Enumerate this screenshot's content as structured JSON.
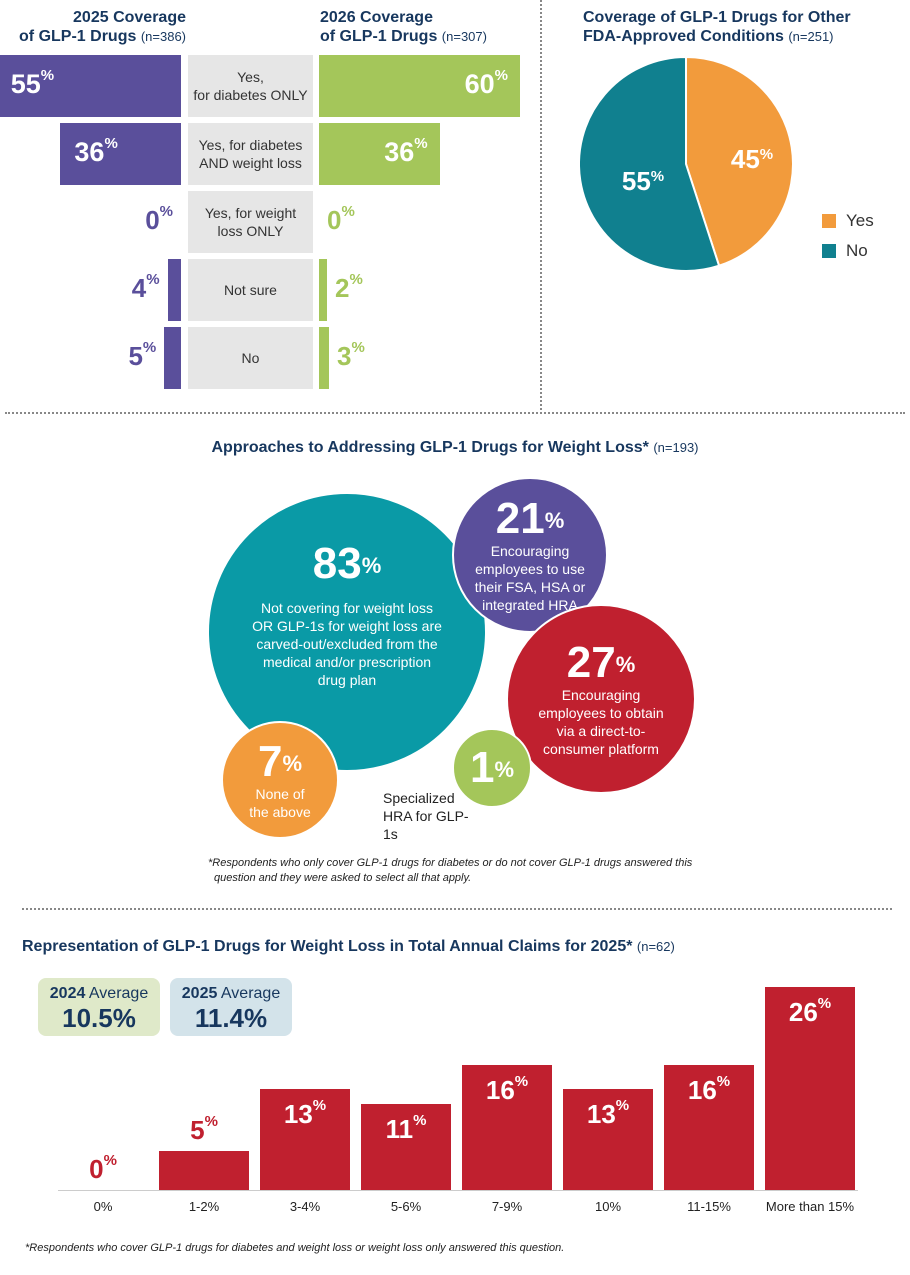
{
  "coverage": {
    "left_title": "2025 Coverage",
    "left_title2": "of GLP-1 Drugs",
    "left_n": "(n=386)",
    "right_title": "2026 Coverage",
    "right_title2": "of GLP-1 Drugs",
    "right_n": "(n=307)",
    "rows": [
      {
        "label": "Yes,\nfor diabetes ONLY",
        "v2025": 55,
        "v2026": 60,
        "t2025": "55",
        "t2026": "60"
      },
      {
        "label": "Yes, for diabetes\nAND weight loss",
        "v2025": 36,
        "v2026": 36,
        "t2025": "36",
        "t2026": "36"
      },
      {
        "label": "Yes, for weight\nloss ONLY",
        "v2025": 0,
        "v2026": 0,
        "t2025": "0",
        "t2026": "0"
      },
      {
        "label": "Not sure",
        "v2025": 4,
        "v2026": 2,
        "t2025": "4",
        "t2026": "2"
      },
      {
        "label": "No",
        "v2025": 5,
        "v2026": 3,
        "t2025": "5",
        "t2026": "3"
      }
    ],
    "pct_sign": "%",
    "color_2025": "#5a4f9b",
    "color_2026": "#a4c65a"
  },
  "pie": {
    "title1": "Coverage of GLP-1 Drugs for Other",
    "title2": "FDA-Approved Conditions",
    "n": "(n=251)",
    "chart_data": {
      "type": "pie",
      "slices": [
        {
          "name": "Yes",
          "value": 45,
          "color": "#f29b3c"
        },
        {
          "name": "No",
          "value": 55,
          "color": "#10808f"
        }
      ]
    },
    "yes_label": "45",
    "no_label": "55",
    "legend_yes": "Yes",
    "legend_no": "No"
  },
  "approaches": {
    "title": "Approaches to Addressing GLP-1 Drugs for Weight Loss*",
    "n": "(n=193)",
    "b83_value": "83",
    "b83_text": "Not covering for weight loss OR GLP-1s for weight loss are carved-out/excluded from the medical and/or prescription drug plan",
    "b21_value": "21",
    "b21_text": "Encouraging employees to use their FSA, HSA or integrated HRA",
    "b27_value": "27",
    "b27_text": "Encouraging employees to obtain via a direct-to-consumer platform",
    "b7_value": "7",
    "b7_text": "None of the above",
    "b1_value": "1",
    "b1_text": "Specialized HRA for GLP-1s",
    "footnote1": "*Respondents who only cover GLP-1 drugs for diabetes or do not cover GLP-1 drugs answered this",
    "footnote2": "question and they were asked to select all that apply."
  },
  "claims": {
    "title": "Representation of GLP-1 Drugs for Weight Loss in Total Annual Claims for 2025*",
    "n": "(n=62)",
    "avg2024_year": "2024",
    "avg2024_word": "Average",
    "avg2024_value": "10.5%",
    "avg2025_year": "2025",
    "avg2025_word": "Average",
    "avg2025_value": "11.4%",
    "chart_data": {
      "type": "bar",
      "categories": [
        "0%",
        "1-2%",
        "3-4%",
        "5-6%",
        "7-9%",
        "10%",
        "11-15%",
        "More than 15%"
      ],
      "values": [
        0,
        5,
        13,
        11,
        16,
        13,
        16,
        26
      ],
      "color": "#c0202f"
    },
    "footnote": "*Respondents who cover GLP-1 drugs for diabetes and weight loss or weight loss only answered this question."
  }
}
